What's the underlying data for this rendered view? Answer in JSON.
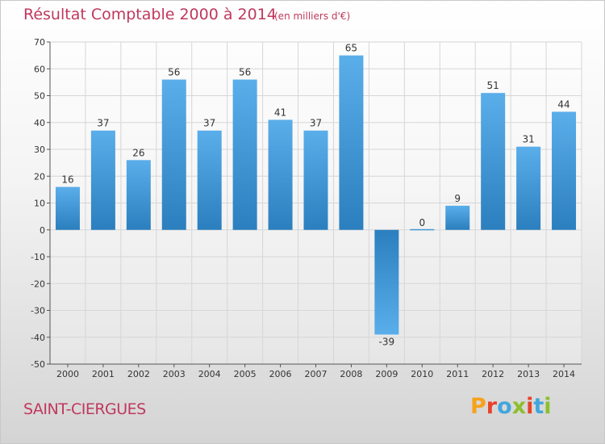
{
  "header": {
    "title": "Résultat Comptable 2000 à 2014",
    "subtitle": "(en milliers d'€)"
  },
  "footer": {
    "commune": "SAINT-CIERGUES",
    "logo_text": "Proxiti",
    "logo_colors": [
      "#f6a21b",
      "#e8422a",
      "#43a6dd",
      "#8cbf2c",
      "#e8422a",
      "#43a6dd",
      "#8cbf2c"
    ]
  },
  "colors": {
    "bar_light": "#5aaeea",
    "bar_dark": "#2b7fbe",
    "accent": "#c0385e"
  },
  "chart_data": {
    "type": "bar",
    "categories": [
      "2000",
      "2001",
      "2002",
      "2003",
      "2004",
      "2005",
      "2006",
      "2007",
      "2008",
      "2009",
      "2010",
      "2011",
      "2012",
      "2013",
      "2014"
    ],
    "values": [
      16,
      37,
      26,
      56,
      37,
      56,
      41,
      37,
      65,
      -39,
      0,
      9,
      51,
      31,
      44
    ],
    "ylim": [
      -50,
      70
    ],
    "yticks": [
      -50,
      -40,
      -30,
      -20,
      -10,
      0,
      10,
      20,
      30,
      40,
      50,
      60,
      70
    ],
    "grid": true,
    "data_labels": true
  }
}
